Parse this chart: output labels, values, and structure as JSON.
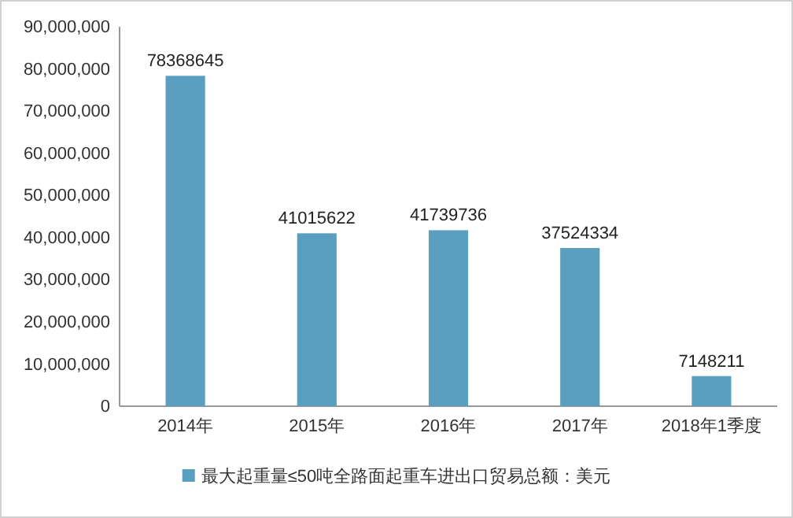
{
  "chart_data": {
    "type": "bar",
    "categories": [
      "2014年",
      "2015年",
      "2016年",
      "2017年",
      "2018年1季度"
    ],
    "series": [
      {
        "name": "最大起重量≤50吨全路面起重车进出口贸易总额：美元",
        "color": "#5b9fc0",
        "values": [
          78368645,
          41015622,
          41739736,
          37524334,
          7148211
        ]
      }
    ],
    "ylim": [
      0,
      90000000
    ],
    "yticks": [
      {
        "value": 0,
        "label": "0"
      },
      {
        "value": 10000000,
        "label": "10,000,000"
      },
      {
        "value": 20000000,
        "label": "20,000,000"
      },
      {
        "value": 30000000,
        "label": "30,000,000"
      },
      {
        "value": 40000000,
        "label": "40,000,000"
      },
      {
        "value": 50000000,
        "label": "50,000,000"
      },
      {
        "value": 60000000,
        "label": "60,000,000"
      },
      {
        "value": 70000000,
        "label": "70,000,000"
      },
      {
        "value": 80000000,
        "label": "80,000,000"
      },
      {
        "value": 90000000,
        "label": "90,000,000"
      }
    ],
    "data_labels": true,
    "legend": "bottom",
    "grid": false
  }
}
